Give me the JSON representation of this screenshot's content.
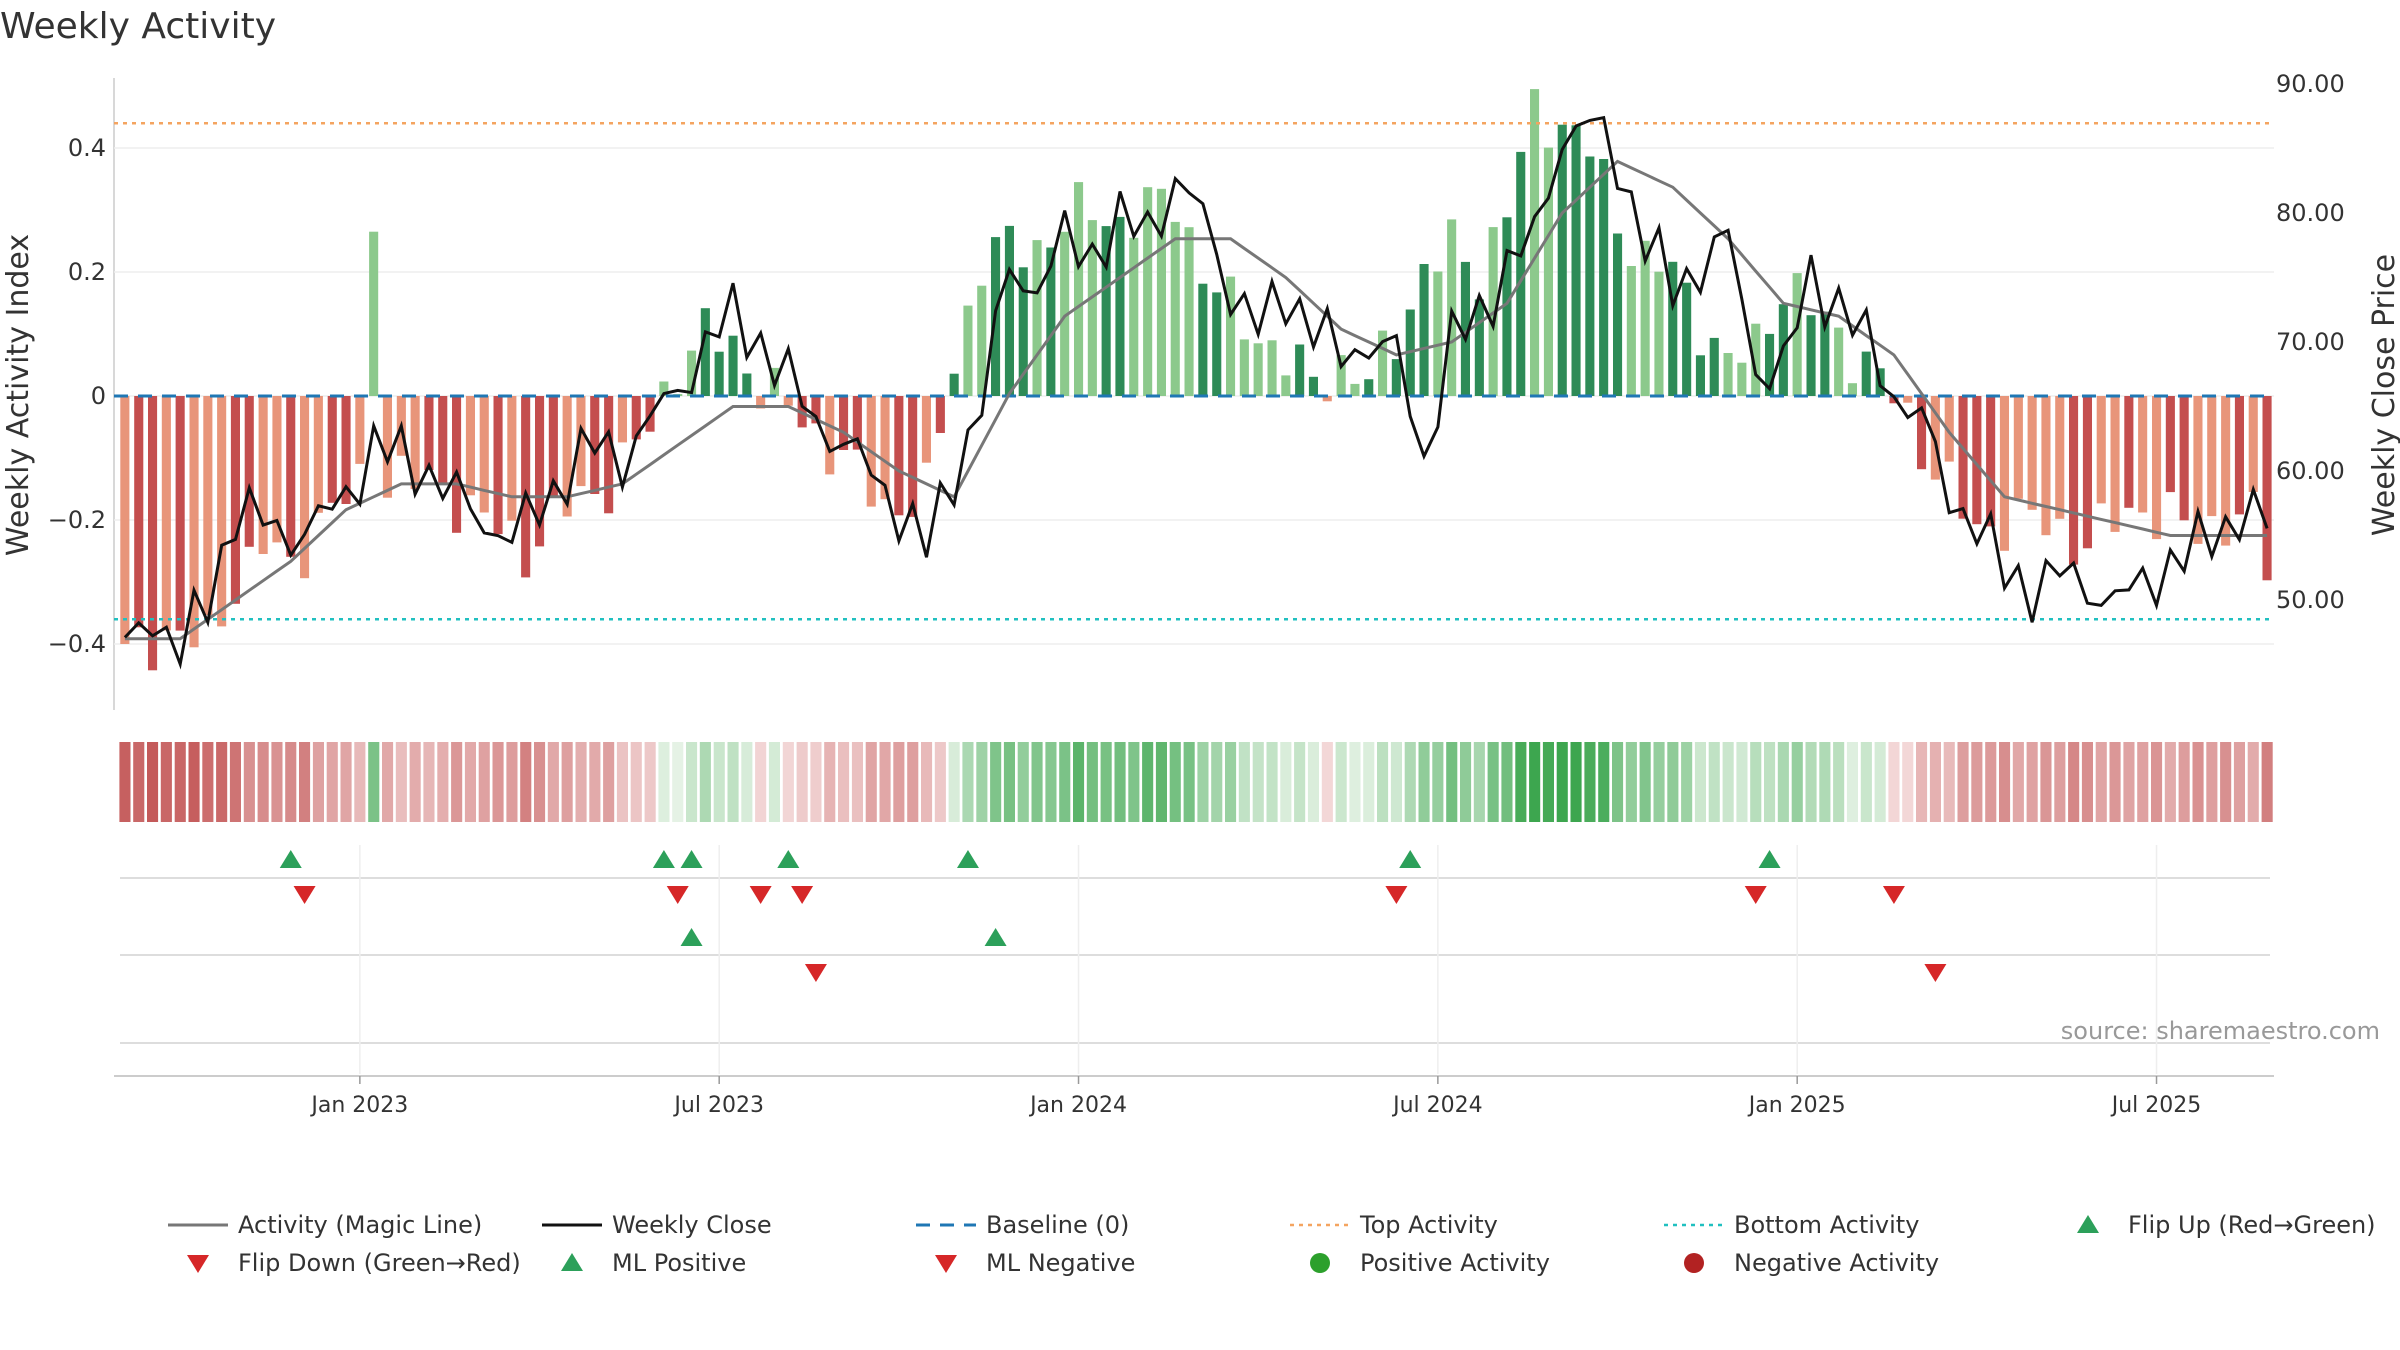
{
  "chart_data": {
    "type": "bar",
    "title": "Weekly Activity",
    "ylabel_left": "Weekly Activity Index",
    "ylabel_right": "Weekly Close Price",
    "left_ticks": [
      "0.4",
      "0.2",
      "0",
      "−0.2",
      "−0.4"
    ],
    "left_tick_values": [
      0.4,
      0.2,
      0,
      -0.2,
      -0.4
    ],
    "right_ticks": [
      "90.00",
      "80.00",
      "70.00",
      "60.00",
      "50.00"
    ],
    "right_tick_values": [
      90,
      80,
      70,
      60,
      50
    ],
    "ylim_left": [
      -0.5,
      0.5
    ],
    "ylim_right": [
      42,
      90
    ],
    "x_ticks": [
      "Jan 2023",
      "Jul 2023",
      "Jan 2024",
      "Jul 2024",
      "Jan 2025",
      "Jul 2025"
    ],
    "x_tick_weeks": [
      17,
      43,
      69,
      95,
      121,
      147
    ],
    "top_activity": 0.44,
    "bottom_activity": -0.36,
    "source": "source: sharemaestro.com",
    "colors": {
      "pos_strong": "#2e8b57",
      "pos_weak": "#8cc98c",
      "neg_strong": "#c44e4e",
      "neg_weak": "#e8957a",
      "magic": "#777777",
      "close": "#111111",
      "baseline": "#1f77b4",
      "top": "#f4a460",
      "bottom": "#20c0c0",
      "flip_up": "#2ca05a",
      "flip_down": "#d62728"
    },
    "activity_keys": [
      [
        0,
        -0.42
      ],
      [
        3,
        -0.38
      ],
      [
        6,
        -0.4
      ],
      [
        8,
        -0.3
      ],
      [
        10,
        -0.24
      ],
      [
        12,
        -0.28
      ],
      [
        14,
        -0.2
      ],
      [
        17,
        -0.15
      ],
      [
        20,
        -0.13
      ],
      [
        23,
        -0.15
      ],
      [
        26,
        -0.2
      ],
      [
        29,
        -0.25
      ],
      [
        32,
        -0.18
      ],
      [
        35,
        -0.14
      ],
      [
        38,
        -0.05
      ],
      [
        40,
        0.05
      ],
      [
        42,
        0.1
      ],
      [
        44,
        0.08
      ],
      [
        46,
        0.02
      ],
      [
        48,
        -0.02
      ],
      [
        50,
        -0.06
      ],
      [
        52,
        -0.1
      ],
      [
        55,
        -0.18
      ],
      [
        58,
        -0.16
      ],
      [
        60,
        0.05
      ],
      [
        62,
        0.22
      ],
      [
        64,
        0.24
      ],
      [
        66,
        0.24
      ],
      [
        68,
        0.28
      ],
      [
        70,
        0.3
      ],
      [
        72,
        0.28
      ],
      [
        74,
        0.3
      ],
      [
        76,
        0.32
      ],
      [
        78,
        0.2
      ],
      [
        80,
        0.14
      ],
      [
        82,
        0.1
      ],
      [
        84,
        0.06
      ],
      [
        86,
        0.02
      ],
      [
        88,
        0.05
      ],
      [
        90,
        0.02
      ],
      [
        92,
        0.1
      ],
      [
        94,
        0.2
      ],
      [
        96,
        0.24
      ],
      [
        98,
        0.2
      ],
      [
        100,
        0.3
      ],
      [
        102,
        0.46
      ],
      [
        104,
        0.44
      ],
      [
        106,
        0.4
      ],
      [
        108,
        0.28
      ],
      [
        110,
        0.22
      ],
      [
        112,
        0.2
      ],
      [
        114,
        0.12
      ],
      [
        116,
        0.05
      ],
      [
        118,
        0.08
      ],
      [
        120,
        0.18
      ],
      [
        122,
        0.14
      ],
      [
        124,
        0.1
      ],
      [
        126,
        0.05
      ],
      [
        128,
        0.0
      ],
      [
        130,
        -0.08
      ],
      [
        132,
        -0.15
      ],
      [
        134,
        -0.22
      ],
      [
        136,
        -0.2
      ],
      [
        138,
        -0.2
      ],
      [
        140,
        -0.22
      ],
      [
        142,
        -0.24
      ],
      [
        144,
        -0.2
      ],
      [
        146,
        -0.18
      ],
      [
        148,
        -0.2
      ],
      [
        150,
        -0.22
      ],
      [
        152,
        -0.2
      ],
      [
        154,
        -0.2
      ],
      [
        155,
        -0.27
      ]
    ],
    "close_keys": [
      [
        0,
        46
      ],
      [
        2,
        49
      ],
      [
        4,
        46
      ],
      [
        6,
        50
      ],
      [
        8,
        57
      ],
      [
        10,
        56
      ],
      [
        12,
        55
      ],
      [
        14,
        56
      ],
      [
        16,
        58
      ],
      [
        18,
        62
      ],
      [
        20,
        61
      ],
      [
        22,
        60
      ],
      [
        24,
        58
      ],
      [
        26,
        56
      ],
      [
        28,
        55
      ],
      [
        30,
        57
      ],
      [
        32,
        60
      ],
      [
        34,
        62
      ],
      [
        36,
        61
      ],
      [
        38,
        64
      ],
      [
        40,
        66
      ],
      [
        42,
        70
      ],
      [
        44,
        72
      ],
      [
        46,
        70
      ],
      [
        48,
        67
      ],
      [
        50,
        64
      ],
      [
        52,
        62
      ],
      [
        54,
        60
      ],
      [
        56,
        57
      ],
      [
        58,
        54
      ],
      [
        60,
        60
      ],
      [
        62,
        65
      ],
      [
        64,
        76
      ],
      [
        66,
        74
      ],
      [
        68,
        78
      ],
      [
        70,
        77
      ],
      [
        72,
        79
      ],
      [
        74,
        79
      ],
      [
        76,
        82
      ],
      [
        78,
        80
      ],
      [
        80,
        74
      ],
      [
        82,
        71
      ],
      [
        84,
        74
      ],
      [
        86,
        71
      ],
      [
        88,
        69
      ],
      [
        90,
        70
      ],
      [
        92,
        69
      ],
      [
        94,
        61
      ],
      [
        96,
        70
      ],
      [
        98,
        72
      ],
      [
        100,
        76
      ],
      [
        102,
        78
      ],
      [
        104,
        86
      ],
      [
        106,
        87
      ],
      [
        108,
        84
      ],
      [
        110,
        78
      ],
      [
        112,
        74
      ],
      [
        114,
        76
      ],
      [
        116,
        78
      ],
      [
        118,
        68
      ],
      [
        120,
        68
      ],
      [
        122,
        75
      ],
      [
        124,
        73
      ],
      [
        126,
        70
      ],
      [
        128,
        66
      ],
      [
        130,
        64
      ],
      [
        132,
        58
      ],
      [
        134,
        56
      ],
      [
        136,
        52
      ],
      [
        138,
        51
      ],
      [
        140,
        52
      ],
      [
        142,
        51
      ],
      [
        144,
        50
      ],
      [
        146,
        51
      ],
      [
        148,
        53
      ],
      [
        150,
        54
      ],
      [
        152,
        56
      ],
      [
        154,
        57
      ],
      [
        155,
        55
      ]
    ],
    "magic_keys": [
      [
        0,
        47
      ],
      [
        4,
        47
      ],
      [
        8,
        50
      ],
      [
        12,
        53
      ],
      [
        16,
        57
      ],
      [
        20,
        59
      ],
      [
        24,
        59
      ],
      [
        28,
        58
      ],
      [
        32,
        58
      ],
      [
        36,
        59
      ],
      [
        40,
        62
      ],
      [
        44,
        65
      ],
      [
        48,
        65
      ],
      [
        52,
        63
      ],
      [
        56,
        60
      ],
      [
        60,
        58
      ],
      [
        64,
        66
      ],
      [
        68,
        72
      ],
      [
        72,
        75
      ],
      [
        76,
        78
      ],
      [
        80,
        78
      ],
      [
        84,
        75
      ],
      [
        88,
        71
      ],
      [
        92,
        69
      ],
      [
        96,
        70
      ],
      [
        100,
        73
      ],
      [
        104,
        80
      ],
      [
        108,
        84
      ],
      [
        112,
        82
      ],
      [
        116,
        78
      ],
      [
        120,
        73
      ],
      [
        124,
        72
      ],
      [
        128,
        69
      ],
      [
        132,
        63
      ],
      [
        136,
        58
      ],
      [
        140,
        57
      ],
      [
        144,
        56
      ],
      [
        148,
        55
      ],
      [
        152,
        55
      ],
      [
        155,
        55
      ]
    ],
    "flip_up": [
      12,
      39,
      41,
      48,
      61,
      93,
      119
    ],
    "flip_down": [
      13,
      40,
      46,
      49,
      92,
      118,
      128
    ],
    "ml_positive": [
      41,
      63
    ],
    "ml_negative": [
      50,
      131
    ],
    "legend": [
      {
        "label": "Activity (Magic Line)",
        "kind": "line",
        "color": "#777777"
      },
      {
        "label": "Weekly Close",
        "kind": "line",
        "color": "#111111"
      },
      {
        "label": "Baseline (0)",
        "kind": "dash",
        "color": "#1f77b4"
      },
      {
        "label": "Top Activity",
        "kind": "dot",
        "color": "#f4a460"
      },
      {
        "label": "Bottom Activity",
        "kind": "dot",
        "color": "#20c0c0"
      },
      {
        "label": "Flip Up (Red→Green)",
        "kind": "tri-up",
        "color": "#2ca05a"
      },
      {
        "label": "Flip Down (Green→Red)",
        "kind": "tri-down",
        "color": "#d62728"
      },
      {
        "label": "ML Positive",
        "kind": "tri-up",
        "color": "#2ca05a"
      },
      {
        "label": "ML Negative",
        "kind": "tri-down",
        "color": "#d62728"
      },
      {
        "label": "Positive Activity",
        "kind": "circle",
        "color": "#2ca02c"
      },
      {
        "label": "Negative Activity",
        "kind": "circle",
        "color": "#b22222"
      }
    ]
  }
}
